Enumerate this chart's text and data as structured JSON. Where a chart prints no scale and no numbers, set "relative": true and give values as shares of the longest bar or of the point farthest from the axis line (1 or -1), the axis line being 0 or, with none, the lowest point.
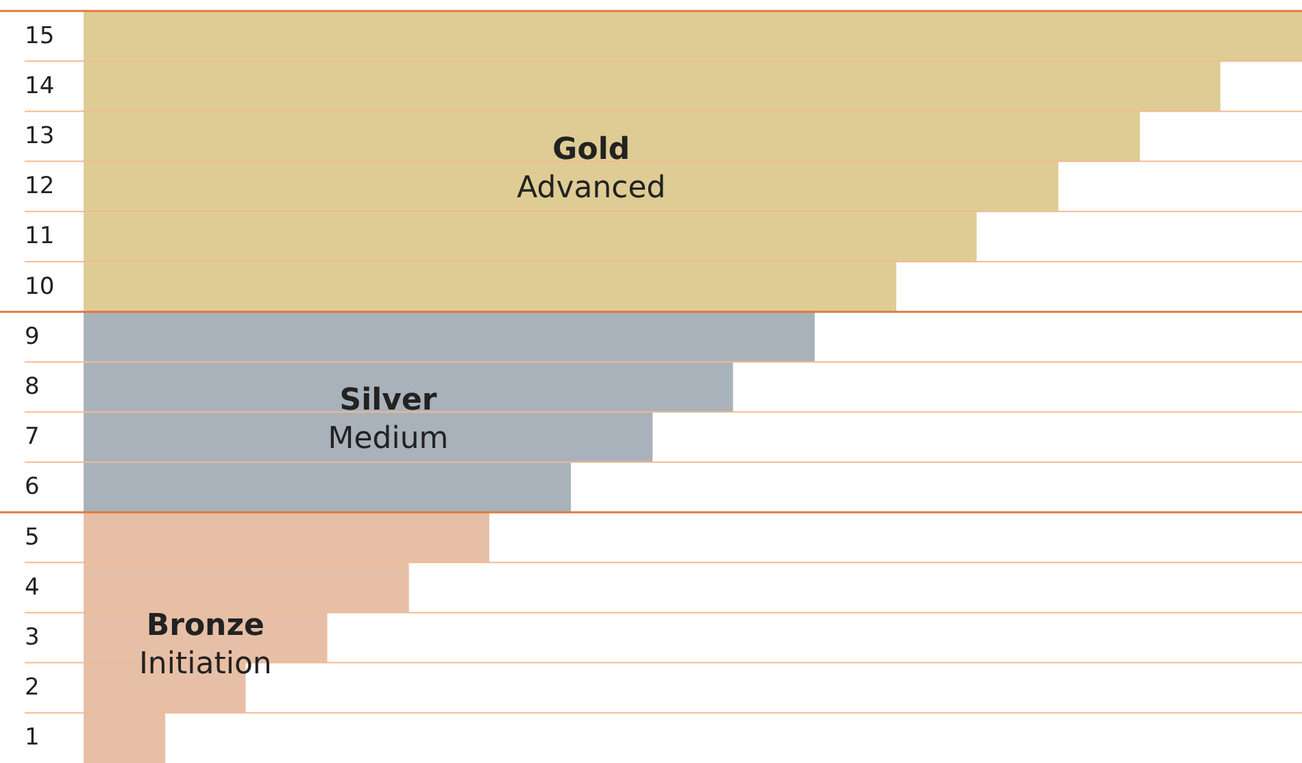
{
  "chart_data": {
    "type": "bar",
    "orientation": "horizontal",
    "relative": true,
    "grid": true,
    "legend": false,
    "categories": [
      "15",
      "14",
      "13",
      "12",
      "11",
      "10",
      "9",
      "8",
      "7",
      "6",
      "5",
      "4",
      "3",
      "2",
      "1"
    ],
    "series": [
      {
        "name": "Gold",
        "color": "#dfcc94",
        "values": [
          1,
          0.933,
          0.867,
          0.8,
          0.733,
          0.667,
          null,
          null,
          null,
          null,
          null,
          null,
          null,
          null,
          null
        ]
      },
      {
        "name": "Silver",
        "color": "#a9b2ba",
        "values": [
          null,
          null,
          null,
          null,
          null,
          null,
          0.6,
          0.533,
          0.467,
          0.4,
          null,
          null,
          null,
          null,
          null
        ]
      },
      {
        "name": "Bronze",
        "color": "#e6bfa6",
        "values": [
          null,
          null,
          null,
          null,
          null,
          null,
          null,
          null,
          null,
          null,
          0.333,
          0.267,
          0.2,
          0.133,
          0.067
        ]
      }
    ],
    "annotations": [
      "Advanced",
      "Medium",
      "Initiation"
    ]
  }
}
